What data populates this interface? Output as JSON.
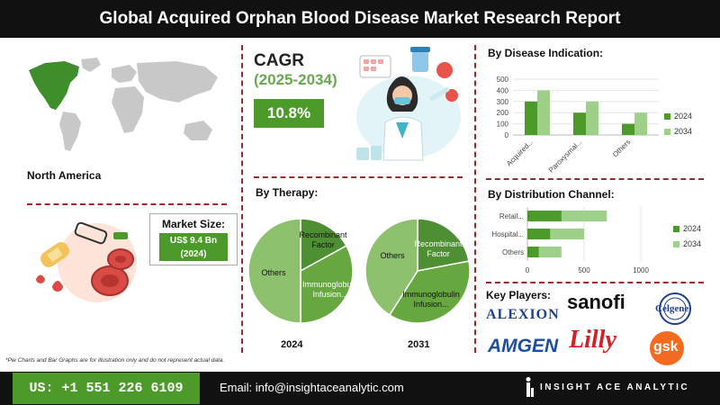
{
  "header": {
    "title": "Global Acquired Orphan Blood Disease Market Research Report"
  },
  "region": {
    "label": "North America"
  },
  "cagr": {
    "title": "CAGR",
    "period": "(2025-2034)",
    "value": "10.8%"
  },
  "market_size": {
    "label": "Market Size:",
    "value_line1": "US$ 9.4 Bn",
    "value_line2": "(2024)"
  },
  "therapy": {
    "title": "By Therapy:",
    "pies": [
      {
        "year": "2024",
        "slices": [
          {
            "label": "Recombinant Factor",
            "value": 17
          },
          {
            "label": "Immunoglobulin Infusion...",
            "value": 33
          },
          {
            "label": "Others",
            "value": 50
          }
        ]
      },
      {
        "year": "2031",
        "slices": [
          {
            "label": "Recombinant Factor",
            "value": 22
          },
          {
            "label": "Immunoglobulin Infusion...",
            "value": 37
          },
          {
            "label": "Others",
            "value": 41
          }
        ]
      }
    ]
  },
  "colors": {
    "accent": "#4c9a2a",
    "series_2024": "#4c9a2a",
    "series_2034": "#9fd08a",
    "pie_dark": "#4f8f33",
    "pie_mid": "#66a83f",
    "pie_light": "#8ec16d"
  },
  "chart_data": [
    {
      "type": "bar",
      "title": "By Disease Indication:",
      "orientation": "vertical",
      "categories": [
        "Acquired...",
        "Paroxysmal...",
        "Others"
      ],
      "series": [
        {
          "name": "2024",
          "values": [
            300,
            200,
            100
          ]
        },
        {
          "name": "2034",
          "values": [
            400,
            300,
            200
          ]
        }
      ],
      "ylim": [
        0,
        500
      ],
      "yticks": [
        0,
        100,
        200,
        300,
        400,
        500
      ],
      "legend": "right"
    },
    {
      "type": "bar",
      "title": "By Distribution Channel:",
      "orientation": "horizontal",
      "categories": [
        "Retail...",
        "Hospital...",
        "Others"
      ],
      "series": [
        {
          "name": "2024",
          "values": [
            300,
            200,
            100
          ]
        },
        {
          "name": "2034",
          "values": [
            700,
            500,
            300
          ]
        }
      ],
      "xlim": [
        0,
        1000
      ],
      "xticks": [
        0,
        500,
        1000
      ],
      "legend": "right"
    }
  ],
  "key_players": {
    "title": "Key Players:",
    "logos": [
      "ALEXION",
      "sanofi",
      "Celgene",
      "AMGEN",
      "Lilly",
      "gsk"
    ]
  },
  "footnote": "*Pie Charts and Bar Graphs are for illustration only and do not represent actual data.",
  "footer": {
    "phone": "US: +1 551 226 6109",
    "email": "Email: info@insightaceanalytic.com",
    "brand": "INSIGHT ACE ANALYTIC"
  }
}
